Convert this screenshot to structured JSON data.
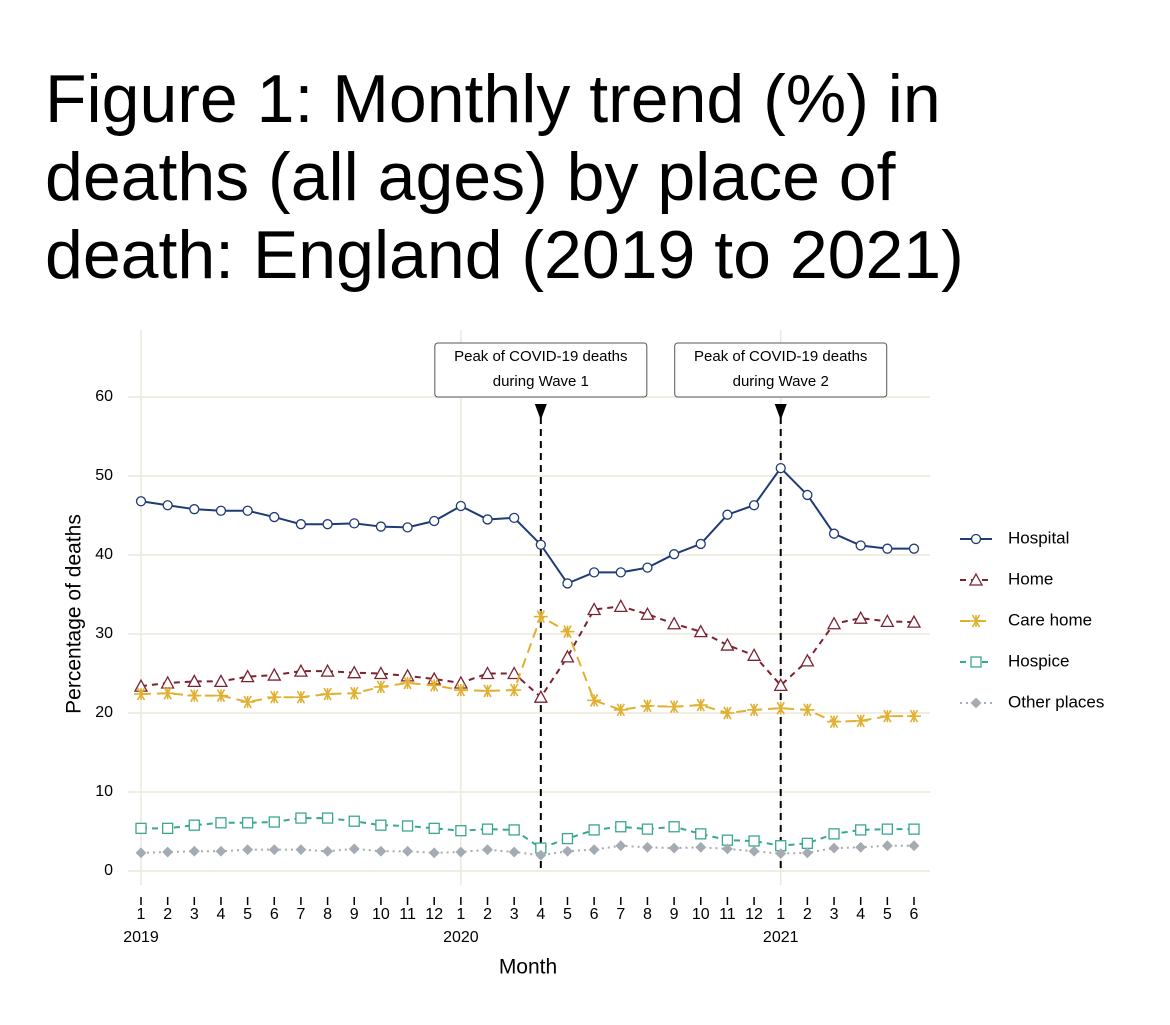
{
  "chart_data": {
    "type": "line",
    "title_lines": [
      "Figure 1: Monthly trend (%) in",
      "deaths (all ages) by place of",
      "death: England (2019 to 2021)"
    ],
    "x_label": "Month",
    "y_label": "Percentage of deaths",
    "categories": [
      "1",
      "2",
      "3",
      "4",
      "5",
      "6",
      "7",
      "8",
      "9",
      "10",
      "11",
      "12",
      "1",
      "2",
      "3",
      "4",
      "5",
      "6",
      "7",
      "8",
      "9",
      "10",
      "11",
      "12",
      "1",
      "2",
      "3",
      "4",
      "5",
      "6"
    ],
    "category_years": [
      "2019",
      null,
      null,
      null,
      null,
      null,
      null,
      null,
      null,
      null,
      null,
      null,
      "2020",
      null,
      null,
      null,
      null,
      null,
      null,
      null,
      null,
      null,
      null,
      null,
      "2021",
      null,
      null,
      null,
      null,
      null
    ],
    "ylim": [
      -3.5,
      68
    ],
    "yticks": [
      0,
      10,
      20,
      30,
      40,
      50,
      60
    ],
    "grid": true,
    "series": [
      {
        "name": "Hospital",
        "color": "#1f3a75",
        "marker": "circle",
        "dash": "solid",
        "values": [
          46.8,
          46.3,
          45.8,
          45.6,
          45.6,
          44.8,
          43.9,
          43.9,
          44.0,
          43.6,
          43.5,
          44.3,
          46.2,
          44.5,
          44.7,
          41.3,
          36.4,
          37.8,
          37.8,
          38.4,
          40.1,
          41.4,
          45.1,
          46.3,
          51.0,
          47.6,
          42.7,
          41.2,
          40.8,
          40.8
        ]
      },
      {
        "name": "Home",
        "color": "#7b2331",
        "marker": "triangle",
        "dash": "dashed",
        "values": [
          23.4,
          23.8,
          24.0,
          24.0,
          24.6,
          24.8,
          25.3,
          25.3,
          25.1,
          25.0,
          24.7,
          24.3,
          23.8,
          25.0,
          25.0,
          22.0,
          27.1,
          33.1,
          33.5,
          32.5,
          31.3,
          30.3,
          28.6,
          27.3,
          23.5,
          26.6,
          31.3,
          32.0,
          31.6,
          31.5
        ]
      },
      {
        "name": "Care home",
        "color": "#e0b030",
        "marker": "asterisk",
        "dash": "longdash",
        "values": [
          22.4,
          22.5,
          22.2,
          22.2,
          21.4,
          22.0,
          22.0,
          22.4,
          22.5,
          23.3,
          23.8,
          23.5,
          22.9,
          22.8,
          22.9,
          32.2,
          30.3,
          21.6,
          20.4,
          20.9,
          20.8,
          21.0,
          20.0,
          20.4,
          20.6,
          20.4,
          18.9,
          19.0,
          19.6,
          19.6
        ]
      },
      {
        "name": "Hospice",
        "color": "#3aa78f",
        "marker": "square",
        "dash": "dashed",
        "values": [
          5.4,
          5.4,
          5.8,
          6.1,
          6.1,
          6.2,
          6.7,
          6.7,
          6.3,
          5.8,
          5.7,
          5.4,
          5.1,
          5.3,
          5.2,
          2.9,
          4.1,
          5.2,
          5.6,
          5.3,
          5.6,
          4.7,
          3.9,
          3.8,
          3.2,
          3.5,
          4.7,
          5.2,
          5.3,
          5.3
        ]
      },
      {
        "name": "Other places",
        "color": "#a5abb3",
        "marker": "diamond",
        "dash": "dotted",
        "values": [
          2.3,
          2.4,
          2.5,
          2.5,
          2.7,
          2.7,
          2.7,
          2.5,
          2.8,
          2.5,
          2.5,
          2.3,
          2.4,
          2.7,
          2.4,
          2.0,
          2.5,
          2.7,
          3.2,
          3.0,
          2.9,
          3.0,
          2.8,
          2.5,
          2.2,
          2.3,
          2.9,
          3.0,
          3.2,
          3.2
        ]
      }
    ],
    "annotations": [
      {
        "category_index": 15,
        "lines": [
          "Peak of COVID-19 deaths",
          "during Wave 1"
        ]
      },
      {
        "category_index": 24,
        "lines": [
          "Peak of COVID-19 deaths",
          "during Wave 2"
        ]
      }
    ]
  }
}
